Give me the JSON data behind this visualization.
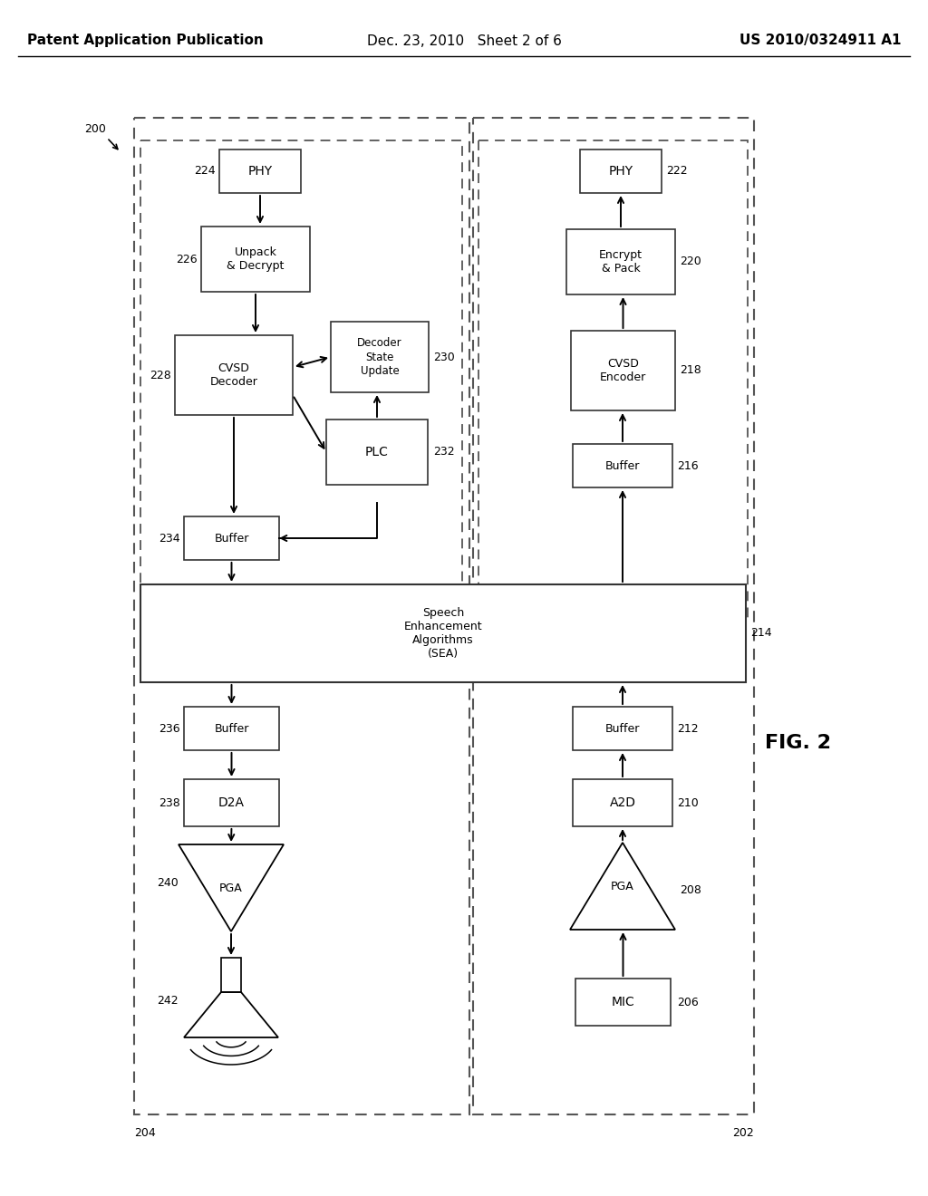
{
  "title_left": "Patent Application Publication",
  "title_mid": "Dec. 23, 2010   Sheet 2 of 6",
  "title_right": "US 2010/0324911 A1",
  "fig_label": "FIG. 2",
  "background": "#ffffff"
}
